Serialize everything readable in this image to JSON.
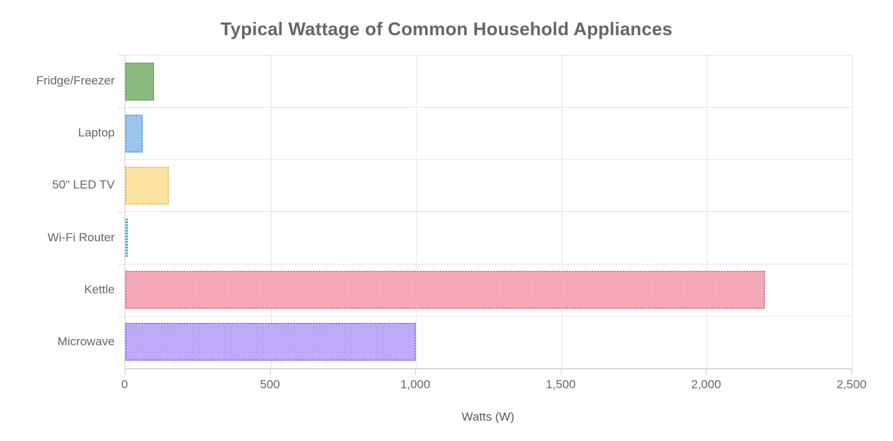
{
  "chart_data": {
    "type": "bar",
    "orientation": "horizontal",
    "title": "Typical Wattage of Common Household Appliances",
    "xlabel": "Watts (W)",
    "xlim": [
      0,
      2500
    ],
    "grid": true,
    "legend": false,
    "categories": [
      "Fridge/Freezer",
      "Laptop",
      "50\" LED TV",
      "Wi-Fi Router",
      "Kettle",
      "Microwave"
    ],
    "values": [
      100,
      60,
      150,
      10,
      2200,
      1000
    ],
    "x_ticks": [
      {
        "value": 0,
        "label": "0"
      },
      {
        "value": 500,
        "label": "500"
      },
      {
        "value": 1000,
        "label": "1,000"
      },
      {
        "value": 1500,
        "label": "1,500"
      },
      {
        "value": 2000,
        "label": "2,000"
      },
      {
        "value": 2500,
        "label": "2,500"
      }
    ],
    "bars": [
      {
        "label": "Fridge/Freezer",
        "value": 100,
        "fill": "#8dbb7f",
        "border": "#67a258"
      },
      {
        "label": "Laptop",
        "value": 60,
        "fill": "#9bc6ed",
        "border": "#649fd8"
      },
      {
        "label": "50\" LED TV",
        "value": 150,
        "fill": "#fbe3a3",
        "border": "#e5bc5a"
      },
      {
        "label": "Wi-Fi Router",
        "value": 10,
        "fill": "#c8e7f0",
        "border": "#52aecc"
      },
      {
        "label": "Kettle",
        "value": 2200,
        "fill": "#f5aaba",
        "border": "#ea6f8f"
      },
      {
        "label": "Microwave",
        "value": 1000,
        "fill": "#c0abf8",
        "border": "#9170ef"
      }
    ],
    "colors": {
      "title_text": "#666666",
      "tick_text": "#666666",
      "axis_line": "#cccccc",
      "grid_line": "#e6e6e6",
      "background": "#ffffff"
    }
  }
}
